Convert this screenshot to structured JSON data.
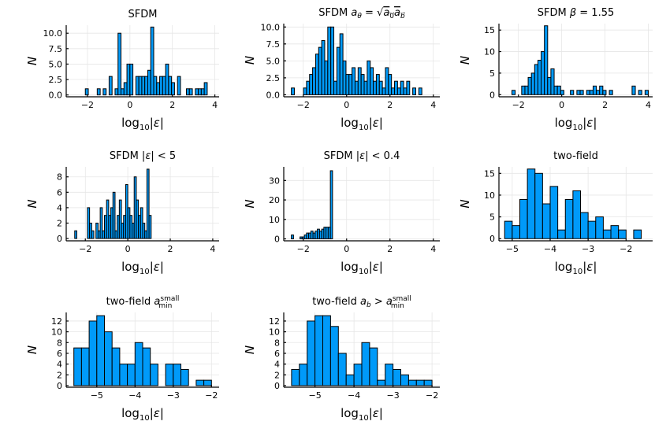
{
  "bar_color": "#009af9",
  "chart_data": [
    {
      "id": "p1",
      "type": "bar",
      "title": "SFDM",
      "math_title": false,
      "xlabel": "log10|ε|",
      "ylabel": "N",
      "xlim": [
        -3.0,
        4.2
      ],
      "ylim": [
        -0.3,
        11.3
      ],
      "xticks": [
        {
          "v": -2,
          "l": "−2"
        },
        {
          "v": 0,
          "l": "0"
        },
        {
          "v": 2,
          "l": "2"
        },
        {
          "v": 4,
          "l": "4"
        }
      ],
      "yticks": [
        {
          "v": 0,
          "l": "0.0"
        },
        {
          "v": 2.5,
          "l": "2.5"
        },
        {
          "v": 5,
          "l": "5.0"
        },
        {
          "v": 7.5,
          "l": "7.5"
        },
        {
          "v": 10,
          "l": "10.0"
        }
      ],
      "bin_start": -2.1,
      "bin_width": 0.14,
      "values": [
        1,
        0,
        0,
        0,
        1,
        0,
        1,
        0,
        3,
        0,
        1,
        10,
        1,
        2,
        5,
        5,
        0,
        3,
        3,
        3,
        3,
        4,
        11,
        3,
        2,
        3,
        3,
        5,
        3,
        2,
        0,
        3,
        0,
        0,
        1,
        1,
        0,
        1,
        1,
        1,
        2
      ]
    },
    {
      "id": "p2",
      "type": "bar",
      "title": "SFDM a_θ=√(a_0 a_b)",
      "math_title": true,
      "xlabel": "log10|ε|",
      "ylabel": "N",
      "xlim": [
        -2.9,
        4.3
      ],
      "ylim": [
        -0.3,
        10.5
      ],
      "xticks": [
        {
          "v": -2,
          "l": "−2"
        },
        {
          "v": 0,
          "l": "0"
        },
        {
          "v": 2,
          "l": "2"
        },
        {
          "v": 4,
          "l": "4"
        }
      ],
      "yticks": [
        {
          "v": 0,
          "l": "0.0"
        },
        {
          "v": 2.5,
          "l": "2.5"
        },
        {
          "v": 5,
          "l": "5.0"
        },
        {
          "v": 7.5,
          "l": "7.5"
        },
        {
          "v": 10,
          "l": "10.0"
        }
      ],
      "bin_start": -2.55,
      "bin_width": 0.14,
      "values": [
        1,
        0,
        0,
        0,
        1,
        2,
        3,
        4,
        6,
        7,
        8,
        5,
        10,
        10,
        2,
        7,
        9,
        5,
        3,
        3,
        4,
        2,
        4,
        3,
        2,
        5,
        4,
        2,
        3,
        2,
        1,
        4,
        3,
        1,
        2,
        1,
        2,
        1,
        2,
        0,
        1,
        0,
        1
      ]
    },
    {
      "id": "p3",
      "type": "bar",
      "title": "SFDM β=1.55",
      "math_title": true,
      "xlabel": "log10|ε|",
      "ylabel": "N",
      "xlim": [
        -2.9,
        4.2
      ],
      "ylim": [
        -0.5,
        16.5
      ],
      "xticks": [
        {
          "v": -2,
          "l": "−2"
        },
        {
          "v": 0,
          "l": "0"
        },
        {
          "v": 2,
          "l": "2"
        },
        {
          "v": 4,
          "l": "4"
        }
      ],
      "yticks": [
        {
          "v": 0,
          "l": "0"
        },
        {
          "v": 5,
          "l": "5"
        },
        {
          "v": 10,
          "l": "10"
        },
        {
          "v": 15,
          "l": "15"
        }
      ],
      "bin_start": -2.3,
      "bin_width": 0.15,
      "values": [
        1,
        0,
        0,
        2,
        2,
        4,
        5,
        7,
        8,
        10,
        16,
        4,
        6,
        2,
        2,
        1,
        0,
        0,
        1,
        0,
        1,
        1,
        0,
        1,
        1,
        2,
        1,
        2,
        1,
        0,
        1,
        0,
        0,
        0,
        0,
        0,
        0,
        2,
        0,
        1,
        0,
        1
      ]
    },
    {
      "id": "p4",
      "type": "bar",
      "title": "SFDM |ε|<5",
      "math_title": true,
      "xlabel": "log10|ε|",
      "ylabel": "N",
      "xlim": [
        -2.9,
        4.3
      ],
      "ylim": [
        -0.3,
        9.3
      ],
      "xticks": [
        {
          "v": -2,
          "l": "−2"
        },
        {
          "v": 0,
          "l": "0"
        },
        {
          "v": 2,
          "l": "2"
        },
        {
          "v": 4,
          "l": "4"
        }
      ],
      "yticks": [
        {
          "v": 0,
          "l": "0"
        },
        {
          "v": 2,
          "l": "2"
        },
        {
          "v": 4,
          "l": "4"
        },
        {
          "v": 6,
          "l": "6"
        },
        {
          "v": 8,
          "l": "8"
        }
      ],
      "bin_start": -2.5,
      "bin_width": 0.1,
      "values": [
        1,
        0,
        0,
        0,
        0,
        0,
        4,
        2,
        1,
        0,
        2,
        1,
        4,
        1,
        3,
        5,
        3,
        4,
        6,
        1,
        3,
        5,
        2,
        3,
        7,
        4,
        3,
        2,
        8,
        5,
        3,
        4,
        2,
        1,
        9,
        3
      ]
    },
    {
      "id": "p5",
      "type": "bar",
      "title": "SFDM |ε|<0.4",
      "math_title": true,
      "xlabel": "log10|ε|",
      "ylabel": "N",
      "xlim": [
        -2.9,
        4.3
      ],
      "ylim": [
        -1,
        37
      ],
      "xticks": [
        {
          "v": -2,
          "l": "−2"
        },
        {
          "v": 0,
          "l": "0"
        },
        {
          "v": 2,
          "l": "2"
        },
        {
          "v": 4,
          "l": "4"
        }
      ],
      "yticks": [
        {
          "v": 0,
          "l": "0"
        },
        {
          "v": 10,
          "l": "10"
        },
        {
          "v": 20,
          "l": "20"
        },
        {
          "v": 30,
          "l": "30"
        }
      ],
      "bin_start": -2.55,
      "bin_width": 0.1,
      "values": [
        2,
        0,
        0,
        0,
        1,
        1,
        2,
        3,
        3,
        4,
        3,
        4,
        5,
        4,
        5,
        6,
        6,
        6,
        35
      ]
    },
    {
      "id": "p6",
      "type": "bar",
      "title": "two-field",
      "math_title": false,
      "xlabel": "log10|ε|",
      "ylabel": "N",
      "xlim": [
        -5.35,
        -1.3
      ],
      "ylim": [
        -0.5,
        16.5
      ],
      "xticks": [
        {
          "v": -5,
          "l": "−5"
        },
        {
          "v": -4,
          "l": "−4"
        },
        {
          "v": -3,
          "l": "−3"
        },
        {
          "v": -2,
          "l": "−2"
        }
      ],
      "yticks": [
        {
          "v": 0,
          "l": "0"
        },
        {
          "v": 5,
          "l": "5"
        },
        {
          "v": 10,
          "l": "10"
        },
        {
          "v": 15,
          "l": "15"
        }
      ],
      "bin_start": -5.2,
      "bin_width": 0.2,
      "values": [
        4,
        3,
        9,
        16,
        15,
        8,
        12,
        2,
        9,
        11,
        6,
        4,
        5,
        2,
        3,
        2,
        0,
        2
      ]
    },
    {
      "id": "p7",
      "type": "bar",
      "title": "two-field a_min^small",
      "math_title": true,
      "xlabel": "log10|ε|",
      "ylabel": "N",
      "xlim": [
        -5.8,
        -1.8
      ],
      "ylim": [
        -0.3,
        13.6
      ],
      "xticks": [
        {
          "v": -5,
          "l": "−5"
        },
        {
          "v": -4,
          "l": "−4"
        },
        {
          "v": -3,
          "l": "−3"
        },
        {
          "v": -2,
          "l": "−2"
        }
      ],
      "yticks": [
        {
          "v": 0,
          "l": "0"
        },
        {
          "v": 2,
          "l": "2"
        },
        {
          "v": 4,
          "l": "4"
        },
        {
          "v": 6,
          "l": "6"
        },
        {
          "v": 8,
          "l": "8"
        },
        {
          "v": 10,
          "l": "10"
        },
        {
          "v": 12,
          "l": "12"
        }
      ],
      "bin_start": -5.6,
      "bin_width": 0.2,
      "values": [
        7,
        7,
        12,
        13,
        10,
        7,
        4,
        4,
        8,
        7,
        4,
        0,
        4,
        4,
        3,
        0,
        1,
        1
      ]
    },
    {
      "id": "p8",
      "type": "bar",
      "title": "two-field a_b>a_min^small",
      "math_title": true,
      "xlabel": "log10|ε|",
      "ylabel": "N",
      "xlim": [
        -5.8,
        -1.8
      ],
      "ylim": [
        -0.3,
        13.6
      ],
      "xticks": [
        {
          "v": -5,
          "l": "−5"
        },
        {
          "v": -4,
          "l": "−4"
        },
        {
          "v": -3,
          "l": "−3"
        },
        {
          "v": -2,
          "l": "−2"
        }
      ],
      "yticks": [
        {
          "v": 0,
          "l": "0"
        },
        {
          "v": 2,
          "l": "2"
        },
        {
          "v": 4,
          "l": "4"
        },
        {
          "v": 6,
          "l": "6"
        },
        {
          "v": 8,
          "l": "8"
        },
        {
          "v": 10,
          "l": "10"
        },
        {
          "v": 12,
          "l": "12"
        }
      ],
      "bin_start": -5.6,
      "bin_width": 0.2,
      "values": [
        3,
        4,
        12,
        13,
        13,
        11,
        6,
        2,
        4,
        8,
        7,
        1,
        4,
        3,
        2,
        1,
        1,
        1
      ]
    }
  ]
}
